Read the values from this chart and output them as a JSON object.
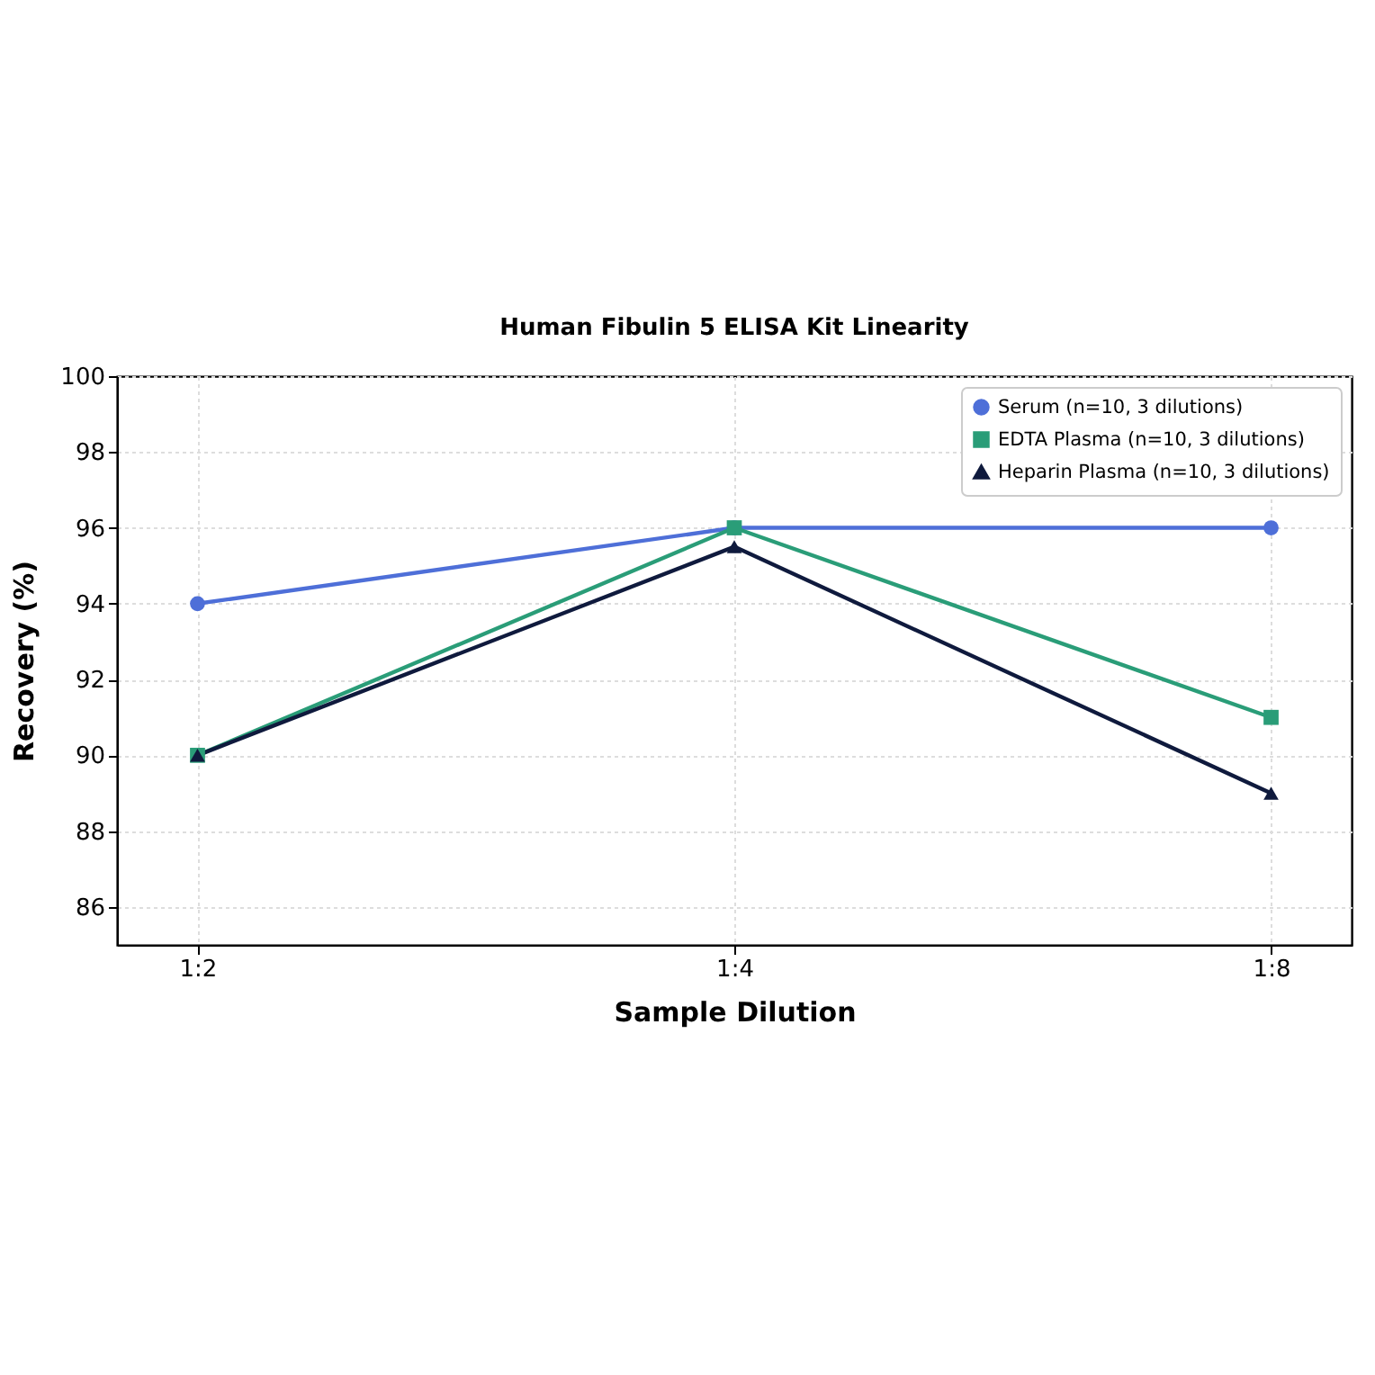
{
  "chart_data": {
    "type": "line",
    "title": "Human Fibulin 5 ELISA Kit Linearity",
    "xlabel": "Sample Dilution",
    "ylabel": "Recovery (%)",
    "categories": [
      "1:2",
      "1:4",
      "1:8"
    ],
    "series": [
      {
        "name": "Serum (n=10, 3 dilutions)",
        "color": "#4e6fd8",
        "values": [
          94,
          96,
          96
        ],
        "marker": "circle"
      },
      {
        "name": "EDTA Plasma (n=10, 3 dilutions)",
        "color": "#2a9d78",
        "values": [
          90,
          96,
          91
        ],
        "marker": "square"
      },
      {
        "name": "Heparin Plasma (n=10, 3 dilutions)",
        "color": "#0f1a3d",
        "values": [
          90,
          95.5,
          89
        ],
        "marker": "triangle"
      }
    ],
    "ylim": [
      85,
      100
    ],
    "yticks": [
      86,
      88,
      90,
      92,
      94,
      96,
      98,
      100
    ],
    "grid": true,
    "legend": "top right",
    "line_style": "solid"
  }
}
